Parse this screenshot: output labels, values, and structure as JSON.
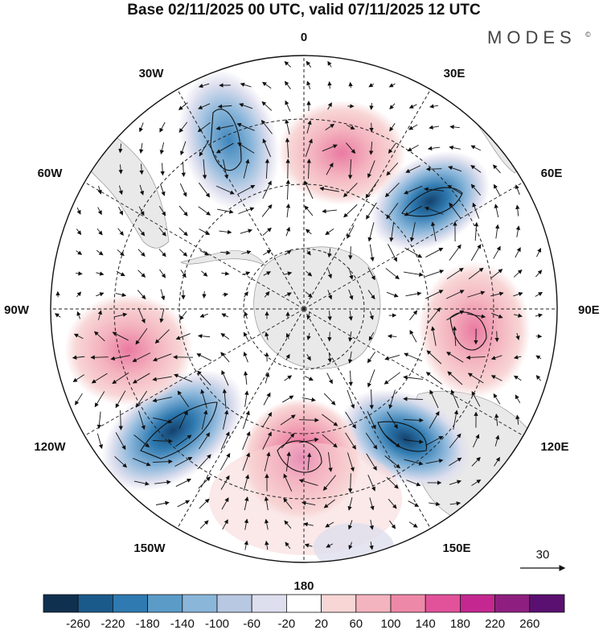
{
  "title": "Base 02/11/2025 00 UTC, valid 07/11/2025 12 UTC",
  "brand": "MODES",
  "brand_mark": "©",
  "longitude_labels": {
    "lon_0": "0",
    "lon_30e": "30E",
    "lon_60e": "60E",
    "lon_90e": "90E",
    "lon_120e": "120E",
    "lon_150e": "150E",
    "lon_180": "180",
    "lon_150w": "150W",
    "lon_120w": "120W",
    "lon_90w": "90W",
    "lon_60w": "60W",
    "lon_30w": "30W"
  },
  "reference_vector": {
    "label": "30"
  },
  "colorbar": {
    "colors": [
      "#10304f",
      "#1a5a8a",
      "#2f7ab0",
      "#5b9bc8",
      "#8ab6da",
      "#b8c8e2",
      "#dedfee",
      "#ffffff",
      "#f8d6d6",
      "#f4b4bf",
      "#ee88a8",
      "#e2529a",
      "#c42890",
      "#8e1f80",
      "#5a1070"
    ],
    "ticks": [
      "-260",
      "-220",
      "-180",
      "-140",
      "-100",
      "-60",
      "-20",
      "20",
      "60",
      "100",
      "140",
      "180",
      "220",
      "260"
    ]
  },
  "anomaly_centers": [
    {
      "name": "anomaly-neg-30w",
      "value": -160,
      "lon": -25,
      "dist": 0.62
    },
    {
      "name": "anomaly-pos-10e",
      "value": 120,
      "lon": 12,
      "dist": 0.55
    },
    {
      "name": "anomaly-neg-60e",
      "value": -200,
      "lon": 58,
      "dist": 0.56
    },
    {
      "name": "anomaly-pos-90e",
      "value": 130,
      "lon": 100,
      "dist": 0.63
    },
    {
      "name": "anomaly-neg-130e",
      "value": -230,
      "lon": 132,
      "dist": 0.58
    },
    {
      "name": "anomaly-pos-180",
      "value": 160,
      "lon": 176,
      "dist": 0.6
    },
    {
      "name": "anomaly-neg-125w",
      "value": -250,
      "lon": -126,
      "dist": 0.68
    },
    {
      "name": "anomaly-pos-95w",
      "value": 110,
      "lon": -98,
      "dist": 0.7
    }
  ]
}
